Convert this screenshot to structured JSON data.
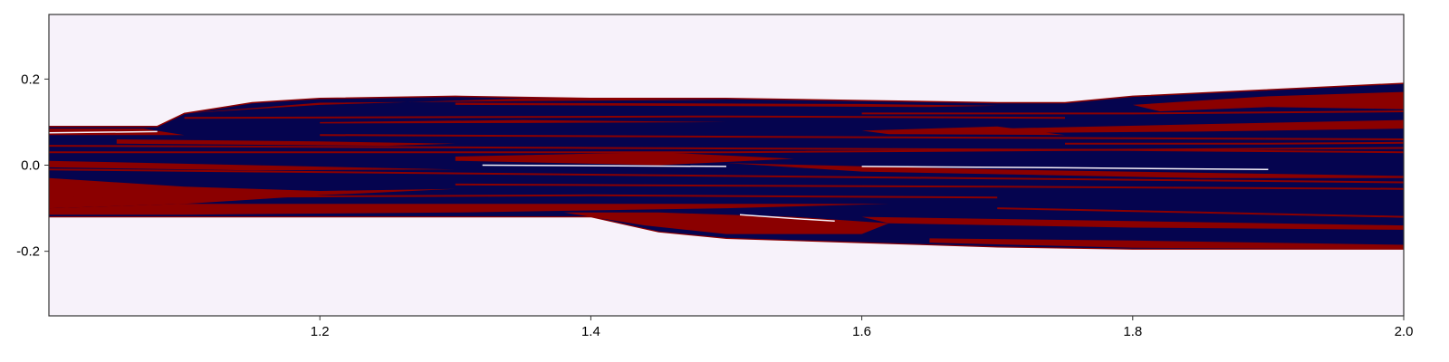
{
  "chart_data": {
    "type": "heatmap",
    "title": "",
    "xlabel": "",
    "ylabel": "",
    "xlim": [
      1.0,
      2.0
    ],
    "ylim": [
      -0.35,
      0.35
    ],
    "grid": false,
    "x_ticks": [
      {
        "value": 1.2,
        "label": "1.2"
      },
      {
        "value": 1.4,
        "label": "1.4"
      },
      {
        "value": 1.6,
        "label": "1.6"
      },
      {
        "value": 1.8,
        "label": "1.8"
      },
      {
        "value": 2.0,
        "label": "2.0"
      }
    ],
    "y_ticks": [
      {
        "value": 0.2,
        "label": "0.2"
      },
      {
        "value": 0.0,
        "label": "0.0"
      },
      {
        "value": -0.2,
        "label": "-0.2"
      }
    ],
    "colors": {
      "background": "#f7f2fa",
      "basin_a": "#05044f",
      "basin_b": "#8b0000",
      "frame": "#333333"
    },
    "region_outer": {
      "upper": [
        [
          1.0,
          0.09
        ],
        [
          1.05,
          0.09
        ],
        [
          1.08,
          0.09
        ],
        [
          1.1,
          0.12
        ],
        [
          1.15,
          0.145
        ],
        [
          1.2,
          0.155
        ],
        [
          1.3,
          0.16
        ],
        [
          1.4,
          0.155
        ],
        [
          1.5,
          0.155
        ],
        [
          1.6,
          0.15
        ],
        [
          1.7,
          0.145
        ],
        [
          1.75,
          0.145
        ],
        [
          1.8,
          0.16
        ],
        [
          1.9,
          0.175
        ],
        [
          2.0,
          0.19
        ]
      ],
      "lower": [
        [
          2.0,
          -0.195
        ],
        [
          1.9,
          -0.195
        ],
        [
          1.8,
          -0.195
        ],
        [
          1.7,
          -0.19
        ],
        [
          1.6,
          -0.18
        ],
        [
          1.5,
          -0.17
        ],
        [
          1.45,
          -0.155
        ],
        [
          1.4,
          -0.12
        ],
        [
          1.3,
          -0.12
        ],
        [
          1.2,
          -0.12
        ],
        [
          1.1,
          -0.12
        ],
        [
          1.0,
          -0.12
        ]
      ]
    },
    "bands_basin_b": [
      [
        [
          1.0,
          0.085
        ],
        [
          1.07,
          0.085
        ],
        [
          1.1,
          0.07
        ],
        [
          1.0,
          0.07
        ]
      ],
      [
        [
          1.1,
          0.12
        ],
        [
          1.2,
          0.14
        ],
        [
          1.35,
          0.155
        ],
        [
          1.5,
          0.152
        ],
        [
          1.2,
          0.145
        ],
        [
          1.12,
          0.125
        ]
      ],
      [
        [
          1.05,
          0.06
        ],
        [
          1.2,
          0.055
        ],
        [
          1.3,
          0.05
        ],
        [
          1.25,
          0.045
        ],
        [
          1.05,
          0.05
        ]
      ],
      [
        [
          1.3,
          0.145
        ],
        [
          1.6,
          0.142
        ],
        [
          1.7,
          0.138
        ],
        [
          1.65,
          0.135
        ],
        [
          1.3,
          0.14
        ]
      ],
      [
        [
          1.6,
          0.08
        ],
        [
          1.7,
          0.09
        ],
        [
          1.75,
          0.07
        ],
        [
          1.62,
          0.072
        ]
      ],
      [
        [
          1.8,
          0.14
        ],
        [
          1.9,
          0.16
        ],
        [
          2.0,
          0.17
        ],
        [
          2.0,
          0.13
        ],
        [
          1.9,
          0.135
        ],
        [
          1.82,
          0.125
        ]
      ],
      [
        [
          1.7,
          0.085
        ],
        [
          1.85,
          0.095
        ],
        [
          2.0,
          0.105
        ],
        [
          2.0,
          0.085
        ],
        [
          1.85,
          0.078
        ],
        [
          1.72,
          0.075
        ]
      ],
      [
        [
          1.3,
          0.02
        ],
        [
          1.45,
          0.03
        ],
        [
          1.55,
          0.015
        ],
        [
          1.45,
          0.0
        ],
        [
          1.3,
          0.01
        ]
      ],
      [
        [
          1.0,
          0.01
        ],
        [
          1.15,
          0.0
        ],
        [
          1.3,
          -0.01
        ],
        [
          1.15,
          -0.012
        ],
        [
          1.0,
          -0.005
        ]
      ],
      [
        [
          1.0,
          -0.03
        ],
        [
          1.1,
          -0.05
        ],
        [
          1.2,
          -0.06
        ],
        [
          1.3,
          -0.055
        ],
        [
          1.2,
          -0.07
        ],
        [
          1.1,
          -0.09
        ],
        [
          1.0,
          -0.1
        ]
      ],
      [
        [
          1.0,
          -0.1
        ],
        [
          1.1,
          -0.09
        ],
        [
          1.3,
          -0.09
        ],
        [
          1.5,
          -0.09
        ],
        [
          1.62,
          -0.09
        ],
        [
          1.5,
          -0.1
        ],
        [
          1.3,
          -0.11
        ],
        [
          1.1,
          -0.115
        ],
        [
          1.0,
          -0.115
        ]
      ],
      [
        [
          1.38,
          -0.11
        ],
        [
          1.45,
          -0.11
        ],
        [
          1.55,
          -0.12
        ],
        [
          1.62,
          -0.135
        ],
        [
          1.6,
          -0.16
        ],
        [
          1.5,
          -0.16
        ],
        [
          1.44,
          -0.14
        ]
      ],
      [
        [
          1.6,
          -0.12
        ],
        [
          1.8,
          -0.13
        ],
        [
          2.0,
          -0.14
        ],
        [
          2.0,
          -0.15
        ],
        [
          1.8,
          -0.145
        ],
        [
          1.62,
          -0.135
        ]
      ],
      [
        [
          1.65,
          -0.17
        ],
        [
          1.8,
          -0.175
        ],
        [
          2.0,
          -0.185
        ],
        [
          2.0,
          -0.195
        ],
        [
          1.8,
          -0.192
        ],
        [
          1.65,
          -0.18
        ]
      ],
      [
        [
          1.5,
          0.005
        ],
        [
          1.7,
          -0.01
        ],
        [
          1.9,
          -0.02
        ],
        [
          2.0,
          -0.025
        ],
        [
          2.0,
          -0.03
        ],
        [
          1.85,
          -0.03
        ],
        [
          1.6,
          -0.015
        ]
      ],
      [
        [
          1.2,
          0.1
        ],
        [
          1.35,
          0.105
        ],
        [
          1.5,
          0.1
        ],
        [
          1.35,
          0.098
        ],
        [
          1.2,
          0.097
        ]
      ]
    ],
    "streaks_basin_b": [
      [
        [
          1.0,
          0.03
        ],
        [
          1.5,
          0.03
        ],
        [
          2.0,
          0.04
        ]
      ],
      [
        [
          1.0,
          -0.01
        ],
        [
          1.5,
          -0.025
        ],
        [
          2.0,
          -0.04
        ]
      ],
      [
        [
          1.2,
          0.07
        ],
        [
          1.6,
          0.065
        ],
        [
          2.0,
          0.06
        ]
      ],
      [
        [
          1.1,
          0.11
        ],
        [
          1.5,
          0.113
        ],
        [
          1.75,
          0.11
        ]
      ],
      [
        [
          1.3,
          -0.045
        ],
        [
          1.7,
          -0.05
        ],
        [
          2.0,
          -0.055
        ]
      ],
      [
        [
          1.0,
          0.045
        ],
        [
          1.4,
          0.04
        ],
        [
          1.8,
          0.035
        ],
        [
          2.0,
          0.03
        ]
      ],
      [
        [
          1.6,
          0.12
        ],
        [
          1.8,
          0.12
        ],
        [
          2.0,
          0.125
        ]
      ],
      [
        [
          1.0,
          -0.075
        ],
        [
          1.4,
          -0.07
        ],
        [
          1.7,
          -0.075
        ]
      ],
      [
        [
          1.7,
          -0.1
        ],
        [
          1.85,
          -0.11
        ],
        [
          2.0,
          -0.12
        ]
      ],
      [
        [
          1.75,
          0.05
        ],
        [
          1.9,
          0.05
        ],
        [
          2.0,
          0.052
        ]
      ]
    ],
    "streaks_light": [
      [
        [
          1.51,
          -0.115
        ],
        [
          1.55,
          -0.124
        ],
        [
          1.58,
          -0.13
        ]
      ],
      [
        [
          1.32,
          0.0
        ],
        [
          1.45,
          -0.002
        ],
        [
          1.5,
          -0.003
        ]
      ],
      [
        [
          1.6,
          -0.003
        ],
        [
          1.75,
          -0.006
        ],
        [
          1.9,
          -0.01
        ]
      ],
      [
        [
          1.0,
          0.075
        ],
        [
          1.08,
          0.078
        ]
      ]
    ]
  }
}
